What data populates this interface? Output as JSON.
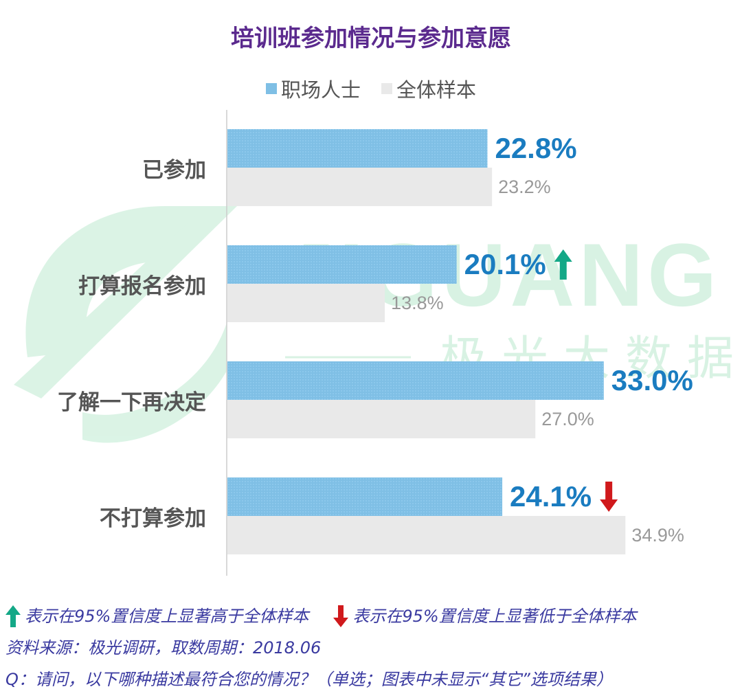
{
  "title": "培训班参加情况与参加意愿",
  "legend": {
    "series1": "职场人士",
    "series2": "全体样本"
  },
  "colors": {
    "series1": "#7fbfe5",
    "series2": "#e9e9e9",
    "value1": "#1a7cc0",
    "value2": "#999999",
    "up": "#14a887",
    "down": "#d0191c",
    "title": "#5b2a8e",
    "footnote": "#3a3aa0"
  },
  "watermark": {
    "brand": "JIGUANG",
    "brand_cn": "极光大数据"
  },
  "chart_data": {
    "type": "bar",
    "orientation": "horizontal",
    "title": "培训班参加情况与参加意愿",
    "categories": [
      "已参加",
      "打算报名参加",
      "了解一下再决定",
      "不打算参加"
    ],
    "series": [
      {
        "name": "职场人士",
        "values": [
          22.8,
          20.1,
          33.0,
          24.1
        ],
        "labels": [
          "22.8%",
          "20.1%",
          "33.0%",
          "24.1%"
        ],
        "significance": [
          "none",
          "up",
          "none",
          "down"
        ]
      },
      {
        "name": "全体样本",
        "values": [
          23.2,
          13.8,
          27.0,
          34.9
        ],
        "labels": [
          "23.2%",
          "13.8%",
          "27.0%",
          "34.9%"
        ]
      }
    ],
    "xlim": [
      0,
      50
    ],
    "grid": false,
    "legend_position": "top-center"
  },
  "footnotes": {
    "up_note": "表示在95%置信度上显著高于全体样本",
    "down_note": "表示在95%置信度上显著低于全体样本",
    "source": "资料来源：极光调研，取数周期：2018.06",
    "question": "Q：请问，以下哪种描述最符合您的情况？（单选；图表中未显示“其它”选项结果）"
  }
}
